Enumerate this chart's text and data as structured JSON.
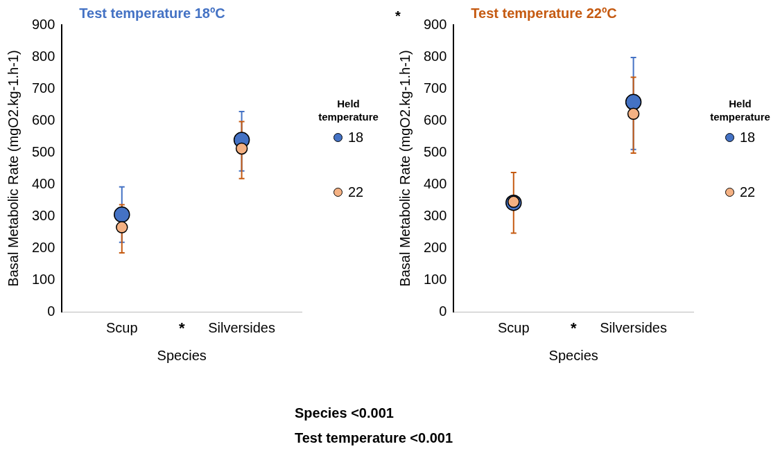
{
  "chart_data": [
    {
      "type": "scatter",
      "title": "Test temperature 18ºC",
      "xlabel": "Species",
      "ylabel": "Basal Metabolic Rate (mgO2.kg-1.h-1)",
      "legend_title": "Held temperature",
      "categories": [
        "Scup",
        "Silversides"
      ],
      "ylim": [
        0,
        900
      ],
      "yticks": [
        0,
        100,
        200,
        300,
        400,
        500,
        600,
        700,
        800,
        900
      ],
      "grid": false,
      "legend": "right",
      "marker": "circle",
      "series": [
        {
          "name": "18",
          "color": "#4472c4",
          "values": [
            305,
            539
          ],
          "errors": [
            [
              218,
              392
            ],
            [
              442,
              628
            ]
          ]
        },
        {
          "name": "22",
          "color": "#f4b183",
          "values": [
            265,
            512
          ],
          "errors": [
            [
              185,
              336
            ],
            [
              418,
              597
            ]
          ]
        }
      ],
      "annotations": [
        "*",
        "*",
        "Species <0.001",
        "Test temperature <0.001"
      ]
    },
    {
      "type": "scatter",
      "title": "Test temperature 22ºC",
      "xlabel": "Species",
      "ylabel": "Basal Metabolic Rate (mgO2.kg-1.h-1)",
      "legend_title": "Held temperature",
      "categories": [
        "Scup",
        "Silversides"
      ],
      "ylim": [
        0,
        900
      ],
      "yticks": [
        0,
        100,
        200,
        300,
        400,
        500,
        600,
        700,
        800,
        900
      ],
      "grid": false,
      "legend": "right",
      "marker": "circle",
      "series": [
        {
          "name": "18",
          "color": "#4472c4",
          "values": [
            342,
            658
          ],
          "errors": [
            null,
            [
              509,
              798
            ]
          ]
        },
        {
          "name": "22",
          "color": "#f4b183",
          "values": [
            345,
            621
          ],
          "errors": [
            [
              247,
              437
            ],
            [
              498,
              736
            ]
          ]
        }
      ],
      "annotations": [
        "*"
      ]
    }
  ]
}
